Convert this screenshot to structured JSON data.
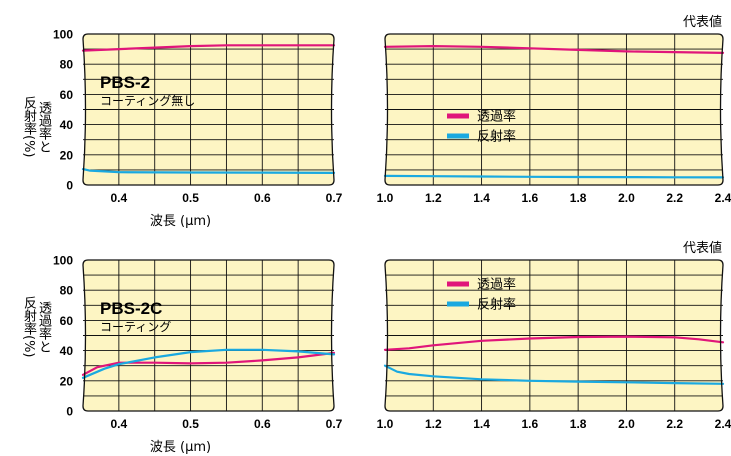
{
  "chart_data": [
    {
      "type": "line",
      "ylabel_line1": "透過率と",
      "ylabel_line2": "反射率(%)",
      "xlabel": "波長 (μm)",
      "ylim": [
        0,
        100
      ],
      "yticks": [
        "0",
        "20",
        "40",
        "60",
        "80",
        "100"
      ],
      "left": {
        "xlim": [
          0.35,
          0.7
        ],
        "xticks": [
          "0.4",
          "0.5",
          "0.6",
          "0.7"
        ],
        "product": "PBS-2",
        "coating": "コーティング無し",
        "series": [
          {
            "name": "透過率",
            "color": "#e0157a",
            "x": [
              0.35,
              0.4,
              0.45,
              0.5,
              0.55,
              0.6,
              0.65,
              0.7
            ],
            "y": [
              89,
              90,
              91,
              92,
              92.5,
              92.5,
              92.5,
              92.5
            ]
          },
          {
            "name": "反射率",
            "color": "#1aa9e0",
            "x": [
              0.35,
              0.36,
              0.38,
              0.4,
              0.5,
              0.6,
              0.7
            ],
            "y": [
              10.5,
              9.5,
              9,
              8.5,
              8.3,
              8.2,
              8
            ]
          }
        ]
      },
      "right": {
        "xlim": [
          1.0,
          2.4
        ],
        "xticks": [
          "1.0",
          "1.2",
          "1.4",
          "1.6",
          "1.8",
          "2.0",
          "2.2",
          "2.4"
        ],
        "note": "代表値",
        "legend": [
          "透過率",
          "反射率"
        ],
        "series": [
          {
            "name": "透過率",
            "color": "#e0157a",
            "x": [
              1.0,
              1.2,
              1.4,
              1.6,
              1.8,
              2.0,
              2.2,
              2.4
            ],
            "y": [
              91.5,
              92,
              91.5,
              90.5,
              89.5,
              88.5,
              88,
              87.5
            ]
          },
          {
            "name": "反射率",
            "color": "#1aa9e0",
            "x": [
              1.0,
              1.2,
              1.4,
              1.6,
              1.8,
              2.0,
              2.2,
              2.4
            ],
            "y": [
              6,
              5.8,
              5.6,
              5.4,
              5.3,
              5.2,
              5.1,
              5
            ]
          }
        ]
      }
    },
    {
      "type": "line",
      "ylabel_line1": "透過率と",
      "ylabel_line2": "反射率(%)",
      "xlabel": "波長 (μm)",
      "ylim": [
        0,
        100
      ],
      "yticks": [
        "0",
        "20",
        "40",
        "60",
        "80",
        "100"
      ],
      "left": {
        "xlim": [
          0.35,
          0.7
        ],
        "xticks": [
          "0.4",
          "0.5",
          "0.6",
          "0.7"
        ],
        "product": "PBS-2C",
        "coating": "コーティング",
        "series": [
          {
            "name": "透過率",
            "color": "#e0157a",
            "x": [
              0.35,
              0.37,
              0.4,
              0.45,
              0.5,
              0.55,
              0.6,
              0.65,
              0.7
            ],
            "y": [
              24,
              29,
              32,
              32,
              31.5,
              32,
              33.5,
              35.5,
              38.5
            ]
          },
          {
            "name": "反射率",
            "color": "#1aa9e0",
            "x": [
              0.35,
              0.38,
              0.4,
              0.45,
              0.5,
              0.55,
              0.6,
              0.65,
              0.7
            ],
            "y": [
              22,
              28,
              31,
              35.5,
              39,
              40.5,
              40.5,
              39.5,
              37.5
            ]
          }
        ]
      },
      "right": {
        "xlim": [
          1.0,
          2.4
        ],
        "xticks": [
          "1.0",
          "1.2",
          "1.4",
          "1.6",
          "1.8",
          "2.0",
          "2.2",
          "2.4"
        ],
        "note": "代表値",
        "legend": [
          "透過率",
          "反射率"
        ],
        "series": [
          {
            "name": "透過率",
            "color": "#e0157a",
            "x": [
              1.0,
              1.1,
              1.2,
              1.4,
              1.6,
              1.8,
              2.0,
              2.2,
              2.3,
              2.4
            ],
            "y": [
              40.5,
              41.5,
              43.5,
              46.5,
              48,
              49,
              49.3,
              48.8,
              47.5,
              45.5
            ]
          },
          {
            "name": "反射率",
            "color": "#1aa9e0",
            "x": [
              1.0,
              1.05,
              1.1,
              1.2,
              1.4,
              1.6,
              1.8,
              2.0,
              2.2,
              2.4
            ],
            "y": [
              30,
              26,
              24.5,
              23,
              21,
              20,
              19.5,
              19,
              18.5,
              18
            ]
          }
        ]
      }
    }
  ]
}
